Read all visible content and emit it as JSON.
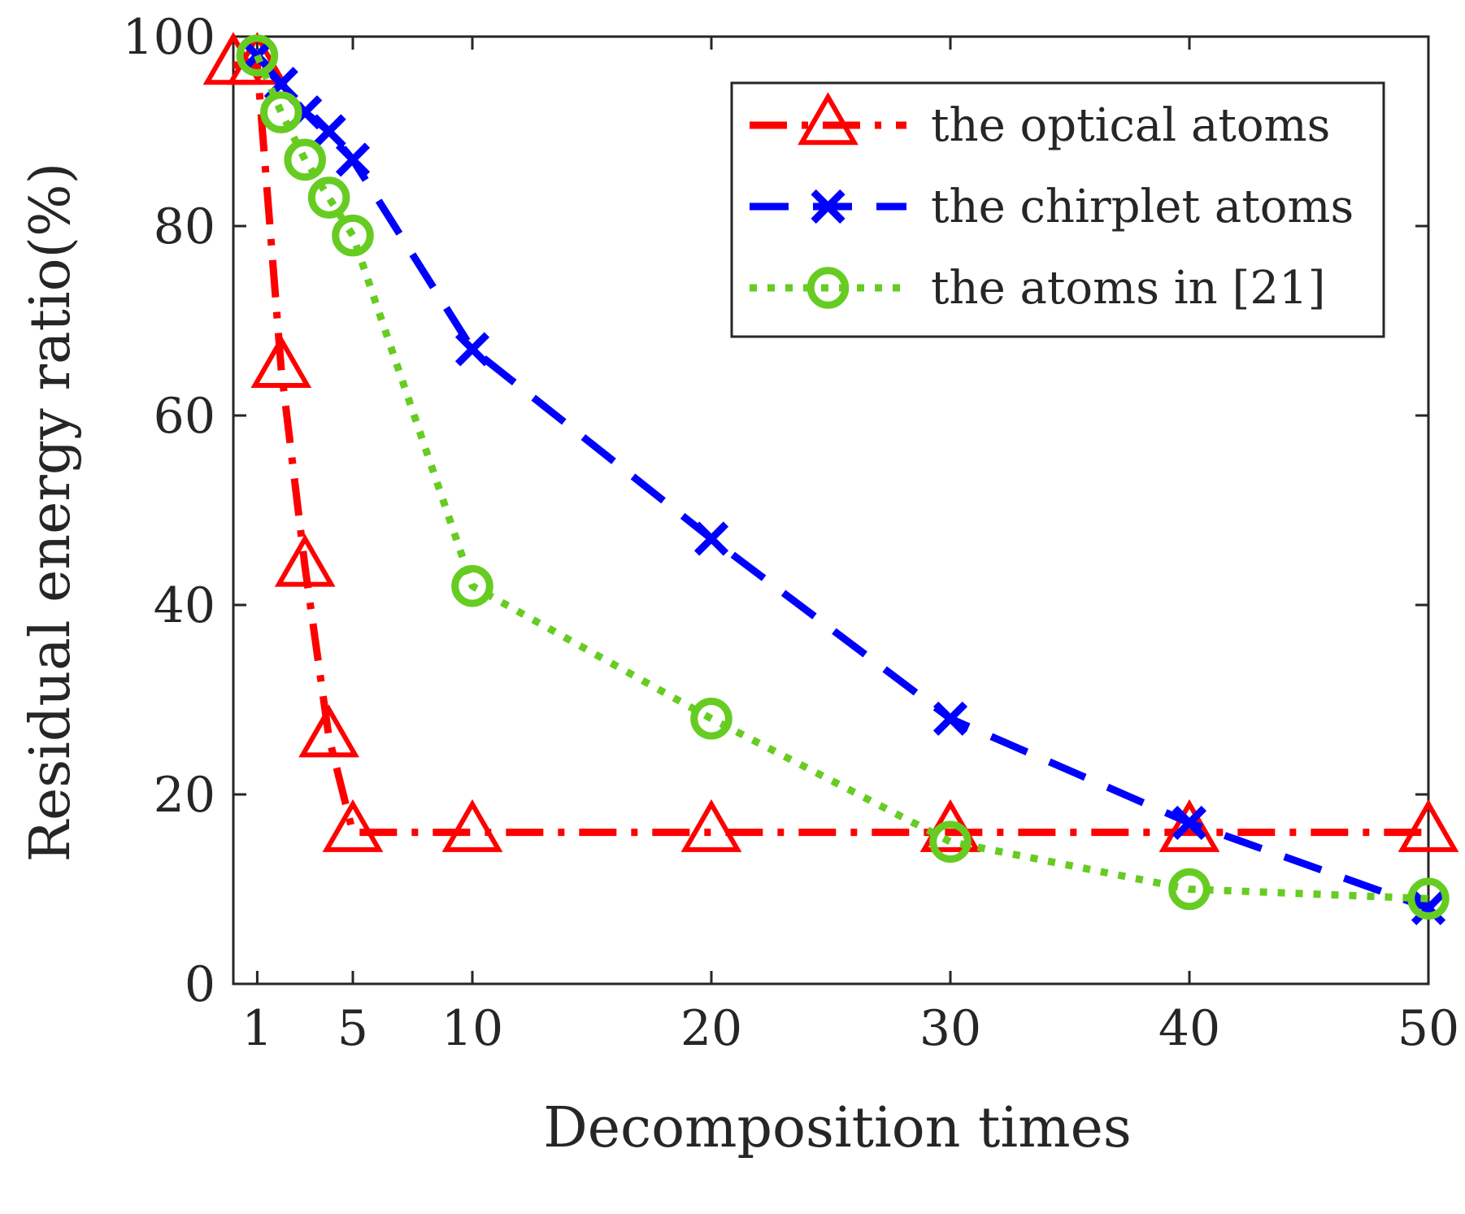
{
  "chart_data": {
    "type": "line",
    "xlabel": "Decomposition times",
    "ylabel": "Residual energy ratio(%)",
    "xlim": [
      0,
      50
    ],
    "ylim": [
      0,
      100
    ],
    "x_ticks": [
      1,
      5,
      10,
      20,
      30,
      40,
      50
    ],
    "x_tick_labels": [
      "1",
      "5",
      "10",
      "20",
      "30",
      "40",
      "50"
    ],
    "y_ticks": [
      0,
      20,
      40,
      60,
      80,
      100
    ],
    "y_tick_labels": [
      "0",
      "20",
      "40",
      "60",
      "80",
      "100"
    ],
    "grid": false,
    "legend_position": "top-right",
    "series": [
      {
        "name": "the optical atoms",
        "color": "#ff0000",
        "line_style": "dash-dot",
        "marker": "triangle",
        "x": [
          0,
          1,
          2,
          3,
          4,
          5,
          10,
          20,
          30,
          40,
          50
        ],
        "y": [
          97,
          97,
          65,
          44,
          26,
          16,
          16,
          16,
          16,
          16,
          16
        ]
      },
      {
        "name": "the chirplet atoms",
        "color": "#0000ff",
        "line_style": "dashed",
        "marker": "x",
        "x": [
          1,
          2,
          3,
          4,
          5,
          10,
          20,
          30,
          40,
          50
        ],
        "y": [
          98,
          95,
          92,
          90,
          87,
          67,
          47,
          28,
          17,
          8
        ]
      },
      {
        "name": "the atoms in [21]",
        "color": "#66cc22",
        "line_style": "dotted",
        "marker": "circle",
        "x": [
          1,
          2,
          3,
          4,
          5,
          10,
          20,
          30,
          40,
          50
        ],
        "y": [
          98,
          92,
          87,
          83,
          79,
          42,
          28,
          15,
          10,
          9
        ]
      }
    ]
  }
}
